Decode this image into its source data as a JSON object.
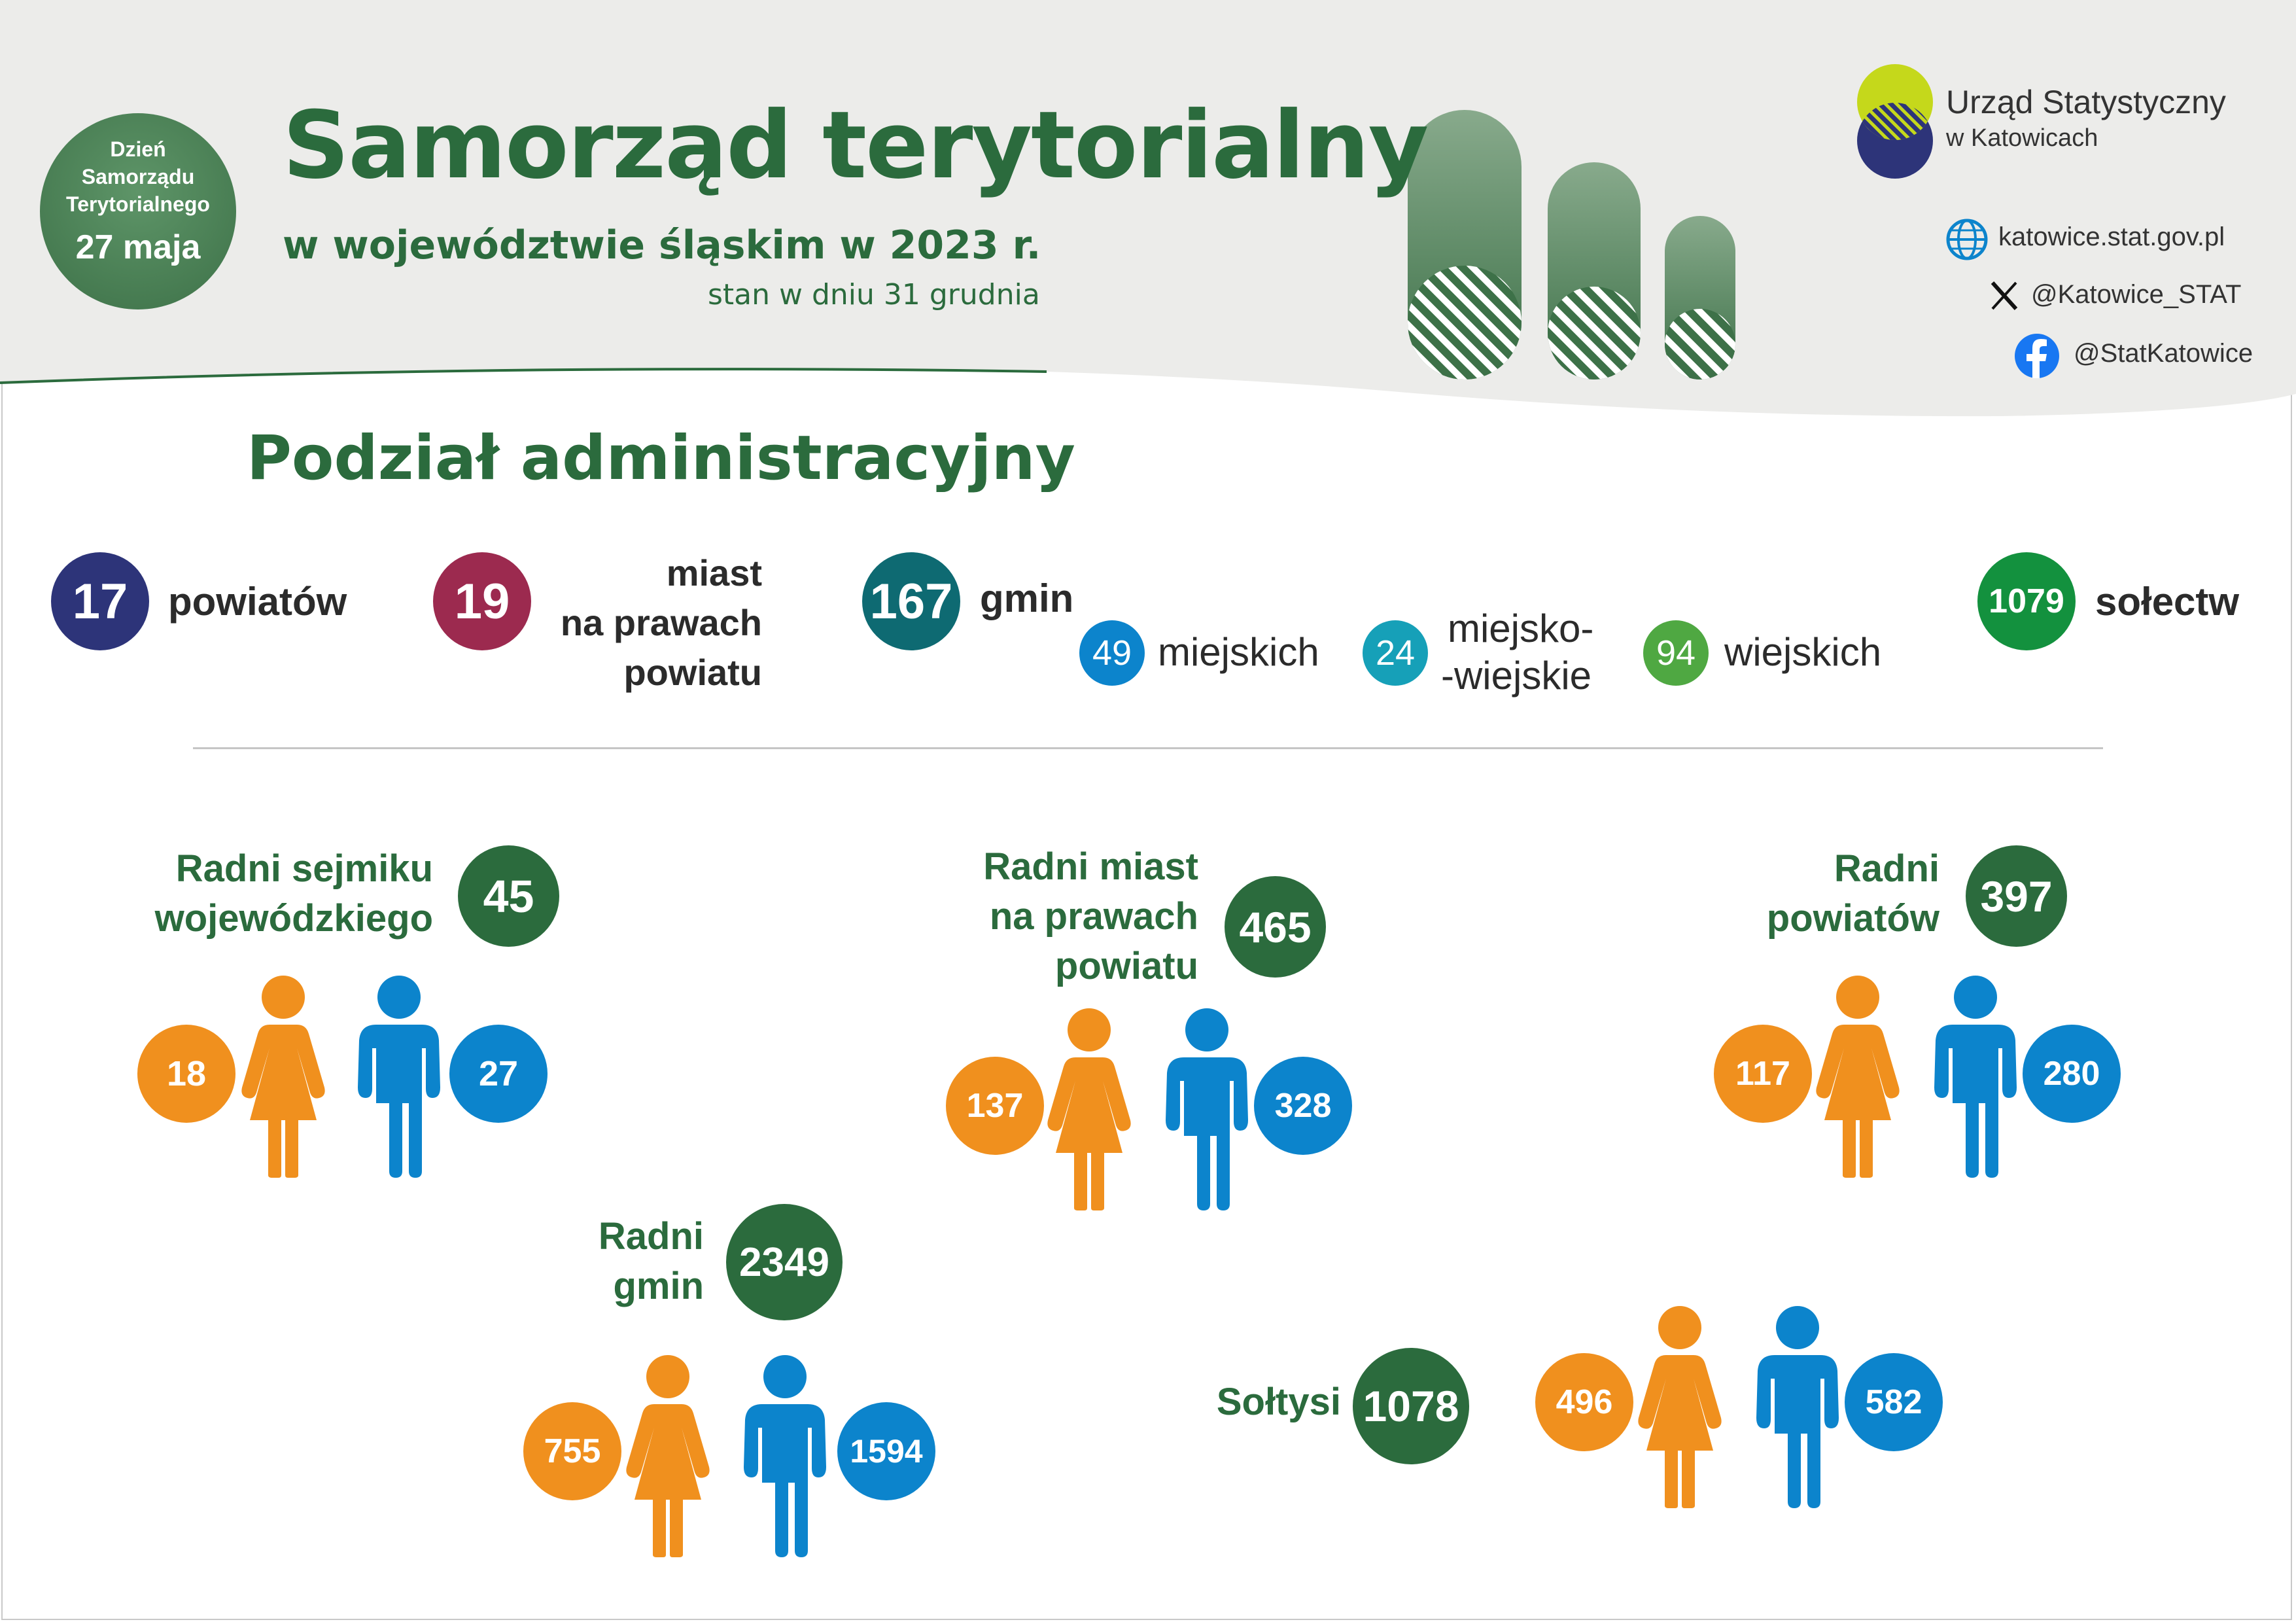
{
  "header": {
    "badge": {
      "line1": "Dzień",
      "line2": "Samorządu",
      "line3": "Terytorialnego",
      "date": "27 maja"
    },
    "title": "Samorząd terytorialny",
    "subtitle": "w województwie śląskim w 2023 r.",
    "as_of": "stan w dniu 31 grudnia"
  },
  "office": {
    "name_line1": "Urząd Statystyczny",
    "name_line2": "w Katowicach",
    "website": "katowice.stat.gov.pl",
    "x_handle": "@Katowice_STAT",
    "facebook": "@StatKatowice",
    "icons": [
      "globe-icon",
      "x-logo-icon",
      "facebook-icon"
    ]
  },
  "admin_division": {
    "title": "Podział administracyjny",
    "powiaty": {
      "value": "17",
      "label": "powiatów"
    },
    "miasta_npp": {
      "value": "19",
      "label_line1": "miast",
      "label_line2": "na prawach",
      "label_line3": "powiatu"
    },
    "gminy": {
      "value": "167",
      "label": "gmin"
    },
    "gminy_miejskie": {
      "value": "49",
      "label": "miejskich"
    },
    "gminy_miejsko_wiejskie": {
      "value": "24",
      "label_line1": "miejsko-",
      "label_line2": "-wiejskie"
    },
    "gminy_wiejskie": {
      "value": "94",
      "label": "wiejskich"
    },
    "solectwa": {
      "value": "1079",
      "label": "sołectw"
    }
  },
  "councillors": {
    "sejmik": {
      "label_line1": "Radni sejmiku",
      "label_line2": "wojewódzkiego",
      "total": "45",
      "women": "18",
      "men": "27"
    },
    "miasta": {
      "label_line1": "Radni miast",
      "label_line2": "na prawach",
      "label_line3": "powiatu",
      "total": "465",
      "women": "137",
      "men": "328"
    },
    "powiaty": {
      "label_line1": "Radni",
      "label_line2": "powiatów",
      "total": "397",
      "women": "117",
      "men": "280"
    },
    "gminy": {
      "label_line1": "Radni",
      "label_line2": "gmin",
      "total": "2349",
      "women": "755",
      "men": "1594"
    },
    "soltysi": {
      "label": "Sołtysi",
      "total": "1078",
      "women": "496",
      "men": "582"
    }
  },
  "colors": {
    "title_green": "#2b6b3d",
    "navy": "#2d3479",
    "maroon": "#9c2a4f",
    "teal": "#0e6a72",
    "blue": "#0c84cc",
    "cyan": "#16a0b8",
    "light_green": "#4fa842",
    "green": "#13913e",
    "women": "#f0901e",
    "men": "#0c84cc"
  }
}
